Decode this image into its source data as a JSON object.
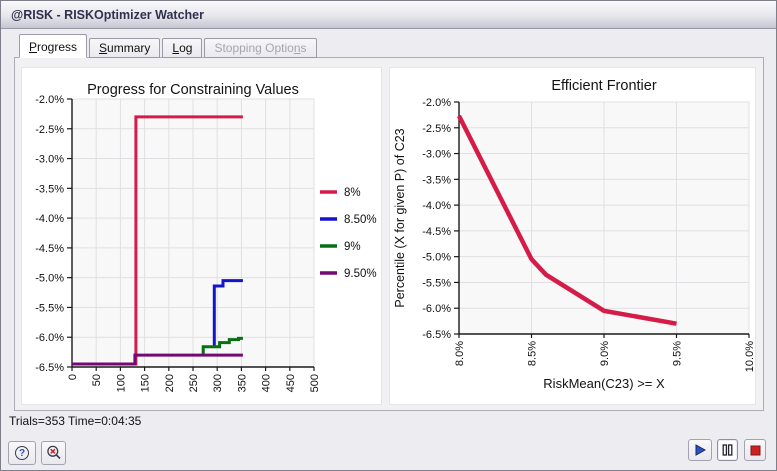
{
  "window": {
    "title": "@RISK - RISKOptimizer Watcher"
  },
  "tabs": {
    "items": [
      {
        "label": "Progress",
        "underline": 0,
        "state": "active"
      },
      {
        "label": "Summary",
        "underline": 0,
        "state": "normal"
      },
      {
        "label": "Log",
        "underline": 0,
        "state": "normal"
      },
      {
        "label": "Stopping Options",
        "underline": 14,
        "state": "disabled"
      }
    ]
  },
  "status": {
    "text": "Trials=353 Time=0:04:35"
  },
  "controls": {
    "help_glyph": "?",
    "buttons": [
      {
        "name": "help",
        "icon": "question-circle-icon"
      },
      {
        "name": "cancel-find",
        "icon": "magnifier-x-icon"
      },
      {
        "name": "start",
        "icon": "play-icon"
      },
      {
        "name": "pause",
        "icon": "pause-icon",
        "active": true
      },
      {
        "name": "stop",
        "icon": "stop-icon"
      }
    ]
  },
  "colors": {
    "series_red": "#D51C48",
    "series_blue": "#1414CC",
    "series_green": "#067012",
    "series_purple": "#730973"
  },
  "chart_data": [
    {
      "type": "line",
      "title": "Progress for Constraining Values",
      "xlabel": "",
      "ylabel": "",
      "grid": true,
      "legend_position": "right",
      "x_axis": {
        "min": 0,
        "max": 500,
        "ticks": [
          0,
          50,
          100,
          150,
          200,
          250,
          300,
          350,
          400,
          450,
          500
        ],
        "tick_labels": [
          "0",
          "50",
          "100",
          "150",
          "200",
          "250",
          "300",
          "350",
          "400",
          "450",
          "500"
        ],
        "rotated_labels": true
      },
      "y_axis": {
        "min": -6.5,
        "max": -2.0,
        "ticks": [
          -2.0,
          -2.5,
          -3.0,
          -3.5,
          -4.0,
          -4.5,
          -5.0,
          -5.5,
          -6.0,
          -6.5
        ],
        "tick_labels": [
          "-2.0%",
          "-2.5%",
          "-3.0%",
          "-3.5%",
          "-4.0%",
          "-4.5%",
          "-5.0%",
          "-5.5%",
          "-6.0%",
          "-6.5%"
        ]
      },
      "series": [
        {
          "name": "8%",
          "color": "#D51C48",
          "points": [
            [
              0,
              -6.45
            ],
            [
              132,
              -6.45
            ],
            [
              132,
              -2.3
            ],
            [
              353,
              -2.3
            ]
          ]
        },
        {
          "name": "8.50%",
          "color": "#1414CC",
          "points": [
            [
              294,
              -6.16
            ],
            [
              294,
              -5.14
            ],
            [
              312,
              -5.14
            ],
            [
              312,
              -5.05
            ],
            [
              353,
              -5.05
            ]
          ]
        },
        {
          "name": "9%",
          "color": "#067012",
          "points": [
            [
              271,
              -6.3
            ],
            [
              271,
              -6.16
            ],
            [
              305,
              -6.16
            ],
            [
              305,
              -6.09
            ],
            [
              325,
              -6.09
            ],
            [
              325,
              -6.04
            ],
            [
              344,
              -6.04
            ],
            [
              344,
              -6.02
            ],
            [
              353,
              -6.02
            ]
          ]
        },
        {
          "name": "9.50%",
          "color": "#730973",
          "points": [
            [
              0,
              -6.45
            ],
            [
              130,
              -6.45
            ],
            [
              130,
              -6.3
            ],
            [
              353,
              -6.3
            ]
          ]
        }
      ]
    },
    {
      "type": "line",
      "title": "Efficient Frontier",
      "xlabel": "RiskMean(C23) >= X",
      "ylabel": "Percentile (X for given P) of C23",
      "grid": true,
      "x_axis": {
        "min": 8.0,
        "max": 10.0,
        "ticks": [
          8.0,
          8.5,
          9.0,
          9.5,
          10.0
        ],
        "tick_labels": [
          "8.0%",
          "8.5%",
          "9.0%",
          "9.5%",
          "10.0%"
        ],
        "rotated_labels": true
      },
      "y_axis": {
        "min": -6.5,
        "max": -2.0,
        "ticks": [
          -2.0,
          -2.5,
          -3.0,
          -3.5,
          -4.0,
          -4.5,
          -5.0,
          -5.5,
          -6.0,
          -6.5
        ],
        "tick_labels": [
          "-2.0%",
          "-2.5%",
          "-3.0%",
          "-3.5%",
          "-4.0%",
          "-4.5%",
          "-5.0%",
          "-5.5%",
          "-6.0%",
          "-6.5%"
        ]
      },
      "series": [
        {
          "name": "Efficient Frontier",
          "color": "#D51C48",
          "points": [
            [
              8.0,
              -2.27
            ],
            [
              8.5,
              -5.05
            ],
            [
              8.6,
              -5.35
            ],
            [
              9.0,
              -6.05
            ],
            [
              9.5,
              -6.3
            ]
          ]
        }
      ]
    }
  ]
}
